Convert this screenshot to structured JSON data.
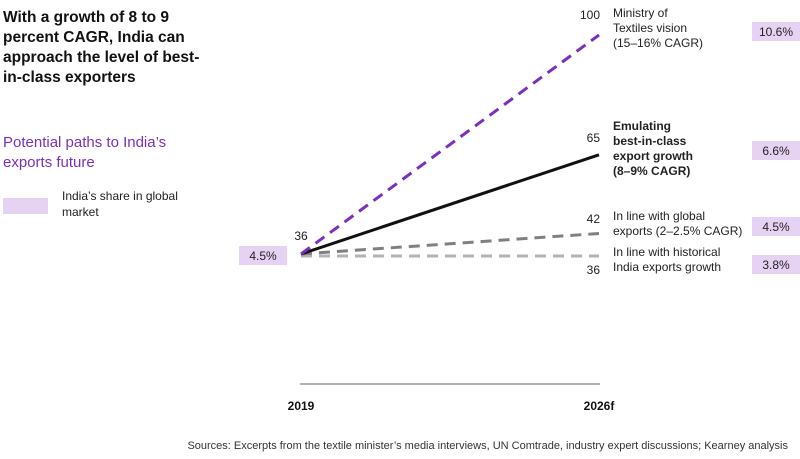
{
  "headline": "With a growth of 8 to 9 percent CAGR, India can approach the level of best-in-class exporters",
  "subhead": "Potential paths to India’s exports future",
  "legend": {
    "label": "India’s share in global market",
    "color": "#e6d2f3"
  },
  "footer": "Sources: Excerpts from the textile minister’s media interviews, UN Comtrade, industry expert discussions; Kearney analysis",
  "colors": {
    "purple": "#7b2fbe",
    "black": "#111111",
    "gray": "#808080",
    "lightgray": "#b3b3b3",
    "share_bg": "#e6d2f3"
  },
  "chart_data": {
    "type": "line",
    "x": [
      "2019",
      "2026f"
    ],
    "start_value": "36",
    "start_share": "4.5%",
    "series": [
      {
        "name": "Ministry of Textiles vision (15–16% CAGR)",
        "lines": [
          "Ministry of",
          "Textiles vision",
          "(15–16% CAGR)"
        ],
        "bold": false,
        "style": "dashed",
        "color": "#7b2fbe",
        "values": [
          36,
          100
        ],
        "end_label": "100",
        "share": "10.6%"
      },
      {
        "name": "Emulating best-in-class export growth (8–9% CAGR)",
        "lines": [
          "Emulating",
          "best-in-class",
          "export growth",
          "(8–9% CAGR)"
        ],
        "bold": true,
        "style": "solid",
        "color": "#111111",
        "values": [
          36,
          65
        ],
        "end_label": "65",
        "share": "6.6%"
      },
      {
        "name": "In line with global exports (2–2.5% CAGR)",
        "lines": [
          "In line with global",
          "exports (2–2.5% CAGR)"
        ],
        "bold": false,
        "style": "dashed",
        "color": "#808080",
        "values": [
          36,
          42
        ],
        "end_label": "42",
        "share": "4.5%"
      },
      {
        "name": "In line with historical India exports growth",
        "lines": [
          "In line with historical",
          "India exports growth"
        ],
        "bold": false,
        "style": "dashed",
        "color": "#b3b3b3",
        "values": [
          36,
          36
        ],
        "end_label": "36",
        "share": "3.8%"
      }
    ]
  }
}
